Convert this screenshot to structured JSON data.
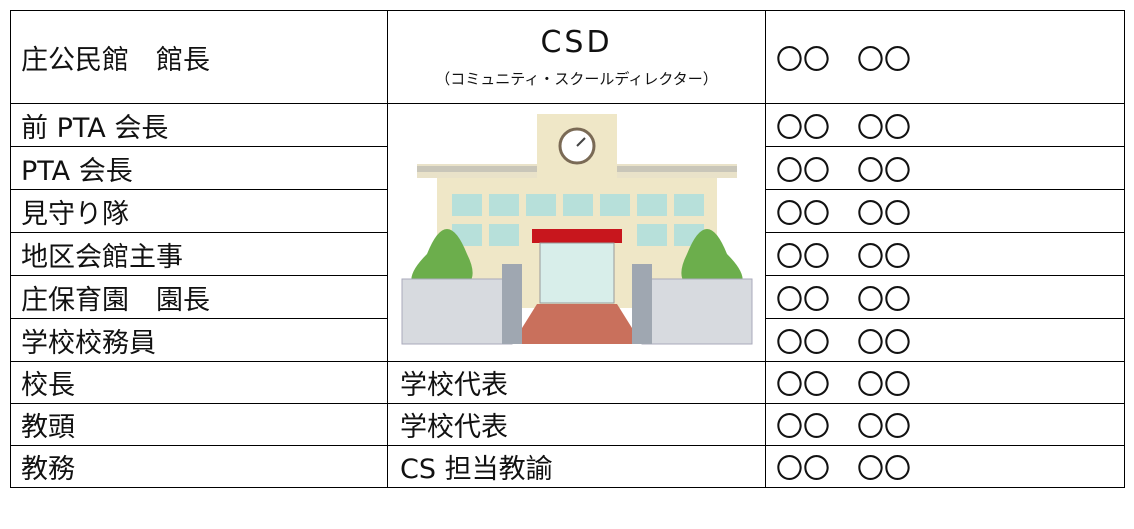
{
  "table": {
    "rows": [
      {
        "role": "庄公民館　館長",
        "title": "CSD",
        "title_note": "（コミュニティ・スクールディレクター）",
        "name": "〇〇　〇〇"
      },
      {
        "role": "前 PTA 会長",
        "name": "〇〇　〇〇"
      },
      {
        "role": "PTA 会長",
        "name": "〇〇　〇〇"
      },
      {
        "role": "見守り隊",
        "name": "〇〇　〇〇"
      },
      {
        "role": "地区会館主事",
        "name": "〇〇　〇〇"
      },
      {
        "role": "庄保育園　園長",
        "name": "〇〇　〇〇"
      },
      {
        "role": "学校校務員",
        "name": "〇〇　〇〇"
      },
      {
        "role": "校長",
        "title": "学校代表",
        "name": "〇〇　〇〇"
      },
      {
        "role": "教頭",
        "title": "学校代表",
        "name": "〇〇　〇〇"
      },
      {
        "role": "教務",
        "title": "CS 担当教諭",
        "name": "〇〇　〇〇"
      }
    ]
  }
}
